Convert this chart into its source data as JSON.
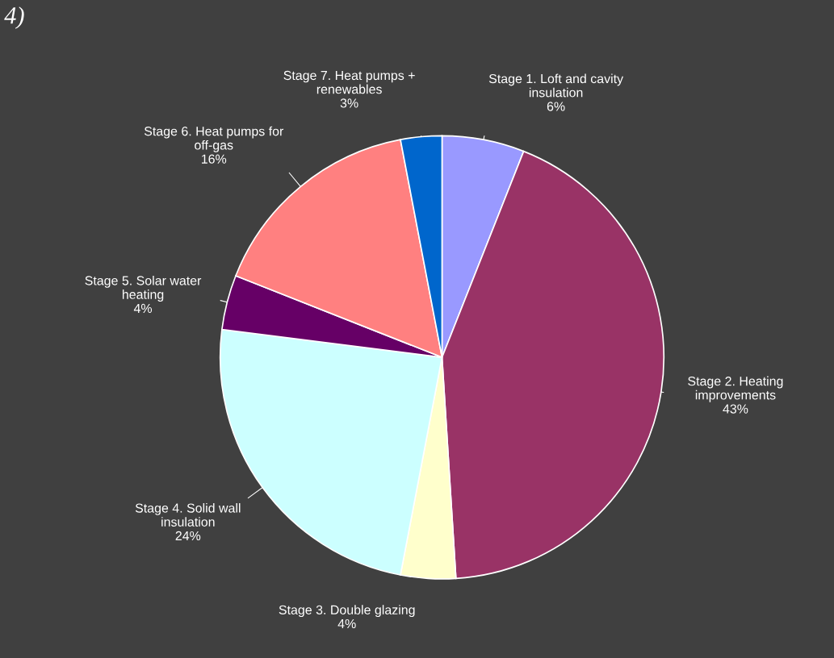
{
  "chart_data": {
    "type": "pie",
    "title": "4)",
    "categories": [
      "Stage 1. Loft and cavity\ninsulation",
      "Stage 2. Heating\nimprovements",
      "Stage 3. Double glazing",
      "Stage 4. Solid wall\ninsulation",
      "Stage 5. Solar water\nheating",
      "Stage 6. Heat pumps for\noff-gas",
      "Stage 7. Heat pumps +\nrenewables"
    ],
    "values": [
      6,
      43,
      4,
      24,
      4,
      16,
      3
    ],
    "colors": [
      "#9999ff",
      "#993366",
      "#ffffcc",
      "#ccffff",
      "#660066",
      "#ff8080",
      "#0066cc"
    ],
    "value_labels": [
      "6%",
      "43%",
      "4%",
      "24%",
      "4%",
      "16%",
      "3%"
    ],
    "legend": false
  }
}
